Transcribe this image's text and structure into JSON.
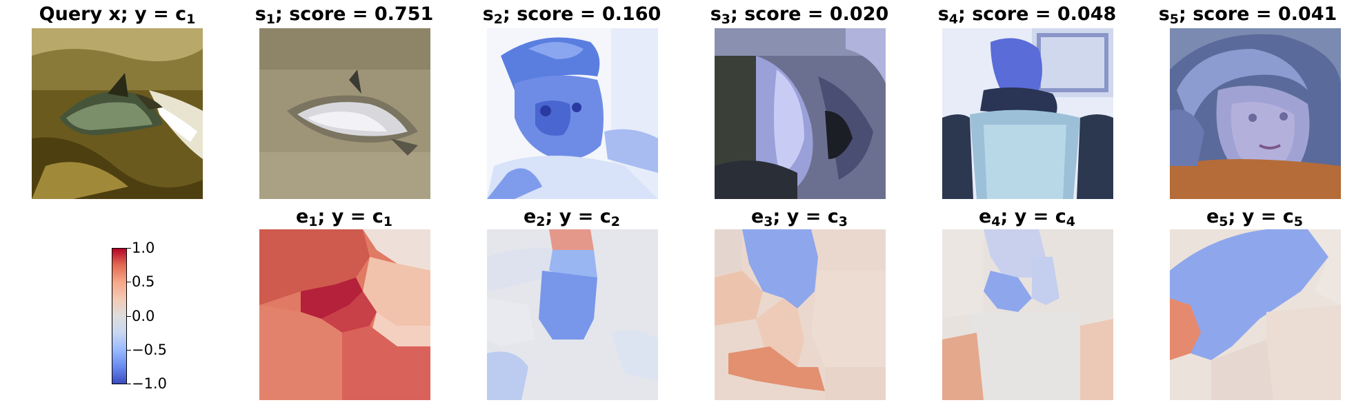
{
  "top_row": [
    {
      "label": "Query x; y = c",
      "sub": "1",
      "prefix": "",
      "prefix_sub": ""
    },
    {
      "label": "; score = 0.751",
      "prefix": "s",
      "prefix_sub": "1"
    },
    {
      "label": "; score = 0.160",
      "prefix": "s",
      "prefix_sub": "2"
    },
    {
      "label": "; score = 0.020",
      "prefix": "s",
      "prefix_sub": "3"
    },
    {
      "label": "; score = 0.048",
      "prefix": "s",
      "prefix_sub": "4"
    },
    {
      "label": "; score = 0.041",
      "prefix": "s",
      "prefix_sub": "5"
    }
  ],
  "bottom_row": [
    {
      "prefix": "e",
      "prefix_sub": "1",
      "label": "; y = c",
      "sub": "1"
    },
    {
      "prefix": "e",
      "prefix_sub": "2",
      "label": "; y = c",
      "sub": "2"
    },
    {
      "prefix": "e",
      "prefix_sub": "3",
      "label": "; y = c",
      "sub": "3"
    },
    {
      "prefix": "e",
      "prefix_sub": "4",
      "label": "; y = c",
      "sub": "4"
    },
    {
      "prefix": "e",
      "prefix_sub": "5",
      "label": "; y = c",
      "sub": "5"
    }
  ],
  "colorbar": {
    "ticks": [
      "1.0",
      "0.5",
      "0.0",
      "−0.5",
      "−1.0"
    ],
    "colormap": "coolwarm",
    "min": -1.0,
    "max": 1.0
  },
  "colors": {
    "positive": "#b40426",
    "neutral": "#dddddd",
    "negative": "#3b4cc0"
  }
}
